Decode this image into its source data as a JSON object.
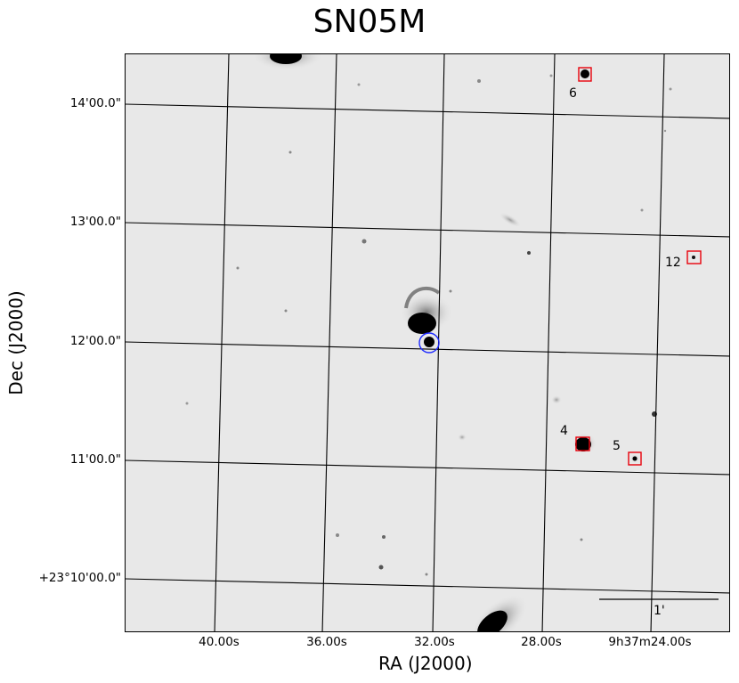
{
  "title": "SN05M",
  "axes": {
    "xlabel": "RA (J2000)",
    "ylabel": "Dec (J2000)",
    "x_ticks": [
      "40.00s",
      "36.00s",
      "32.00s",
      "28.00s",
      "9h37m24.00s"
    ],
    "y_ticks": [
      "14'00.0\"",
      "13'00.0\"",
      "12'00.0\"",
      "11'00.0\"",
      "+23°10'00.0\""
    ]
  },
  "markers": [
    {
      "label": "6",
      "kind": "square"
    },
    {
      "label": "12",
      "kind": "square"
    },
    {
      "label": "4",
      "kind": "square"
    },
    {
      "label": "5",
      "kind": "square"
    }
  ],
  "target_marker": {
    "kind": "circle",
    "color": "#1f2bff"
  },
  "scale_bar": {
    "label": "1'"
  },
  "colors": {
    "box": "#e8000b",
    "circle": "#1f2bff",
    "sky": "#e8e8e8"
  }
}
